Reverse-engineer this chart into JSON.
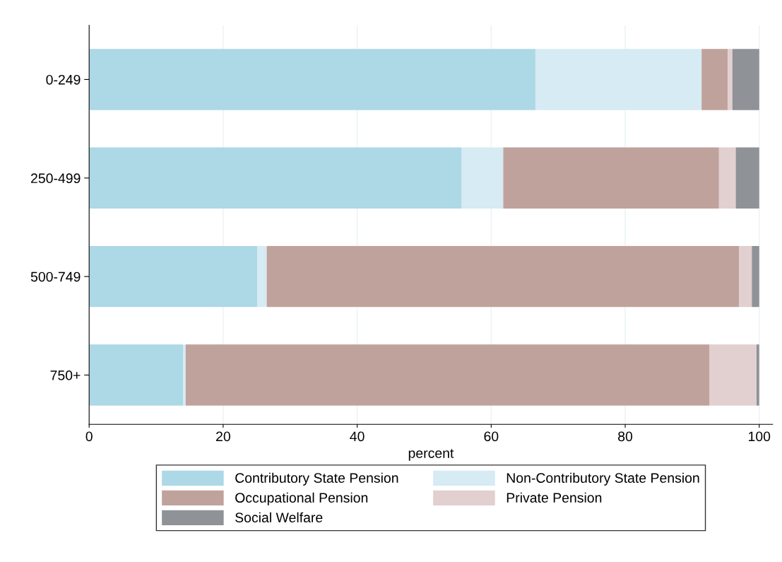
{
  "chart_data": {
    "type": "bar",
    "orientation": "horizontal",
    "stacked": true,
    "xlabel": "percent",
    "categories": [
      "0-249",
      "250-499",
      "500-749",
      "750+"
    ],
    "series": [
      {
        "name": "Contributory State Pension",
        "color": "#add8e6",
        "values": [
          66.6,
          55.6,
          25.1,
          14.0
        ]
      },
      {
        "name": "Non-Contributory State Pension",
        "color": "#d6ebf3",
        "values": [
          24.8,
          6.2,
          1.4,
          0.4
        ]
      },
      {
        "name": "Occupational Pension",
        "color": "#c0a29c",
        "values": [
          3.9,
          32.2,
          70.5,
          78.2
        ]
      },
      {
        "name": "Private Pension",
        "color": "#e2cfcf",
        "values": [
          0.7,
          2.5,
          1.9,
          7.0
        ]
      },
      {
        "name": "Social Welfare",
        "color": "#8f9297",
        "values": [
          4.0,
          3.5,
          1.1,
          0.4
        ]
      }
    ],
    "xlim": [
      0,
      102
    ],
    "xticks": [
      0,
      20,
      40,
      60,
      80,
      100
    ],
    "grid": "x",
    "legend": "bottom"
  }
}
